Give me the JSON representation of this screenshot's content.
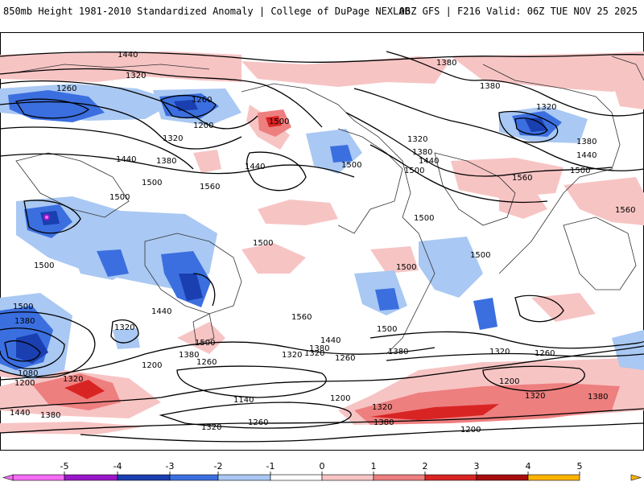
{
  "header": {
    "left": "850mb Height 1981-2010 Standardized Anomaly | College of DuPage NEXLAB",
    "right": "06Z GFS | F216 Valid: 06Z TUE NOV 25 2025"
  },
  "contour_labels": [
    "1440",
    "1320",
    "1260",
    "1260",
    "1200",
    "1320",
    "1380",
    "1440",
    "1500",
    "1560",
    "1440",
    "1500",
    "1380",
    "1380",
    "1320",
    "1320",
    "1380",
    "1500",
    "1440",
    "1500",
    "1380",
    "1440",
    "1500",
    "1560",
    "1560",
    "1500",
    "1500",
    "1500",
    "1500",
    "1500",
    "1500",
    "1560",
    "1500",
    "1440",
    "1500",
    "1380",
    "1080",
    "1200",
    "1320",
    "1380",
    "1440",
    "1380",
    "1320",
    "1320",
    "1440",
    "1500",
    "1200",
    "1260",
    "1380",
    "1320",
    "1260",
    "1380",
    "1260",
    "1320",
    "1200",
    "1140",
    "1200",
    "1320",
    "1260",
    "1320",
    "1380",
    "1380",
    "1320",
    "1200"
  ],
  "legend": {
    "ticks": [
      "-5",
      "-4",
      "-3",
      "-2",
      "-1",
      "0",
      "1",
      "2",
      "3",
      "4",
      "5"
    ],
    "colors": [
      "#f56cf5",
      "#9a17c9",
      "#1a3fb0",
      "#3b6fe0",
      "#a9c8f3",
      "#ffffff",
      "#f7c4c4",
      "#ee7f7f",
      "#d92424",
      "#a60d0d",
      "#ffb300"
    ]
  }
}
